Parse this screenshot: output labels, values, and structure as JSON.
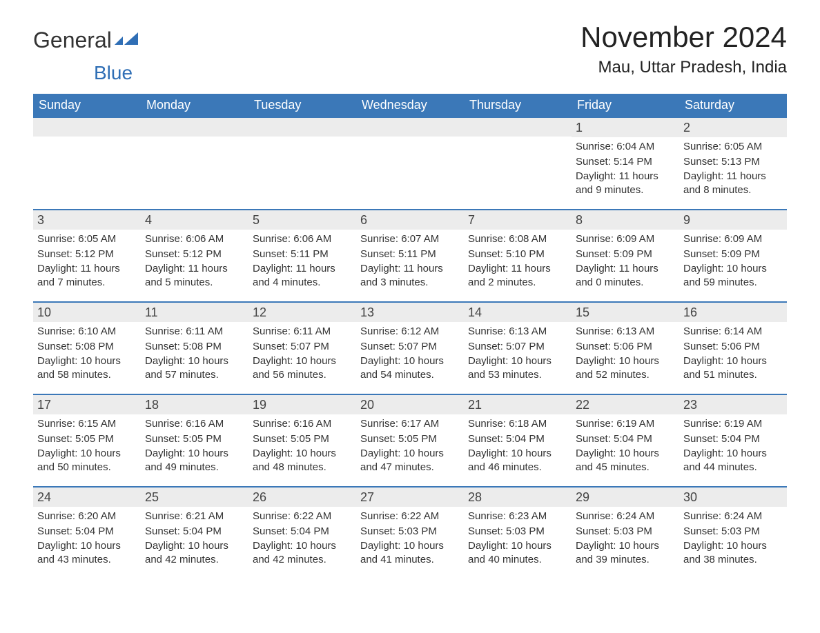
{
  "brand": {
    "part1": "General",
    "part2": "Blue"
  },
  "title": "November 2024",
  "location": "Mau, Uttar Pradesh, India",
  "colors": {
    "header_bg": "#3b78b8",
    "header_text": "#ffffff",
    "row_border": "#3b78b8",
    "daynum_bg": "#ececec",
    "body_text": "#333333",
    "logo_blue": "#2f6eb5",
    "page_bg": "#ffffff"
  },
  "typography": {
    "title_fontsize": 42,
    "location_fontsize": 24,
    "weekday_fontsize": 18,
    "daynum_fontsize": 18,
    "body_fontsize": 15
  },
  "weekdays": [
    "Sunday",
    "Monday",
    "Tuesday",
    "Wednesday",
    "Thursday",
    "Friday",
    "Saturday"
  ],
  "labels": {
    "sunrise": "Sunrise:",
    "sunset": "Sunset:",
    "daylight": "Daylight:"
  },
  "weeks": [
    [
      null,
      null,
      null,
      null,
      null,
      {
        "n": "1",
        "sr": "6:04 AM",
        "ss": "5:14 PM",
        "dl": "11 hours and 9 minutes."
      },
      {
        "n": "2",
        "sr": "6:05 AM",
        "ss": "5:13 PM",
        "dl": "11 hours and 8 minutes."
      }
    ],
    [
      {
        "n": "3",
        "sr": "6:05 AM",
        "ss": "5:12 PM",
        "dl": "11 hours and 7 minutes."
      },
      {
        "n": "4",
        "sr": "6:06 AM",
        "ss": "5:12 PM",
        "dl": "11 hours and 5 minutes."
      },
      {
        "n": "5",
        "sr": "6:06 AM",
        "ss": "5:11 PM",
        "dl": "11 hours and 4 minutes."
      },
      {
        "n": "6",
        "sr": "6:07 AM",
        "ss": "5:11 PM",
        "dl": "11 hours and 3 minutes."
      },
      {
        "n": "7",
        "sr": "6:08 AM",
        "ss": "5:10 PM",
        "dl": "11 hours and 2 minutes."
      },
      {
        "n": "8",
        "sr": "6:09 AM",
        "ss": "5:09 PM",
        "dl": "11 hours and 0 minutes."
      },
      {
        "n": "9",
        "sr": "6:09 AM",
        "ss": "5:09 PM",
        "dl": "10 hours and 59 minutes."
      }
    ],
    [
      {
        "n": "10",
        "sr": "6:10 AM",
        "ss": "5:08 PM",
        "dl": "10 hours and 58 minutes."
      },
      {
        "n": "11",
        "sr": "6:11 AM",
        "ss": "5:08 PM",
        "dl": "10 hours and 57 minutes."
      },
      {
        "n": "12",
        "sr": "6:11 AM",
        "ss": "5:07 PM",
        "dl": "10 hours and 56 minutes."
      },
      {
        "n": "13",
        "sr": "6:12 AM",
        "ss": "5:07 PM",
        "dl": "10 hours and 54 minutes."
      },
      {
        "n": "14",
        "sr": "6:13 AM",
        "ss": "5:07 PM",
        "dl": "10 hours and 53 minutes."
      },
      {
        "n": "15",
        "sr": "6:13 AM",
        "ss": "5:06 PM",
        "dl": "10 hours and 52 minutes."
      },
      {
        "n": "16",
        "sr": "6:14 AM",
        "ss": "5:06 PM",
        "dl": "10 hours and 51 minutes."
      }
    ],
    [
      {
        "n": "17",
        "sr": "6:15 AM",
        "ss": "5:05 PM",
        "dl": "10 hours and 50 minutes."
      },
      {
        "n": "18",
        "sr": "6:16 AM",
        "ss": "5:05 PM",
        "dl": "10 hours and 49 minutes."
      },
      {
        "n": "19",
        "sr": "6:16 AM",
        "ss": "5:05 PM",
        "dl": "10 hours and 48 minutes."
      },
      {
        "n": "20",
        "sr": "6:17 AM",
        "ss": "5:05 PM",
        "dl": "10 hours and 47 minutes."
      },
      {
        "n": "21",
        "sr": "6:18 AM",
        "ss": "5:04 PM",
        "dl": "10 hours and 46 minutes."
      },
      {
        "n": "22",
        "sr": "6:19 AM",
        "ss": "5:04 PM",
        "dl": "10 hours and 45 minutes."
      },
      {
        "n": "23",
        "sr": "6:19 AM",
        "ss": "5:04 PM",
        "dl": "10 hours and 44 minutes."
      }
    ],
    [
      {
        "n": "24",
        "sr": "6:20 AM",
        "ss": "5:04 PM",
        "dl": "10 hours and 43 minutes."
      },
      {
        "n": "25",
        "sr": "6:21 AM",
        "ss": "5:04 PM",
        "dl": "10 hours and 42 minutes."
      },
      {
        "n": "26",
        "sr": "6:22 AM",
        "ss": "5:04 PM",
        "dl": "10 hours and 42 minutes."
      },
      {
        "n": "27",
        "sr": "6:22 AM",
        "ss": "5:03 PM",
        "dl": "10 hours and 41 minutes."
      },
      {
        "n": "28",
        "sr": "6:23 AM",
        "ss": "5:03 PM",
        "dl": "10 hours and 40 minutes."
      },
      {
        "n": "29",
        "sr": "6:24 AM",
        "ss": "5:03 PM",
        "dl": "10 hours and 39 minutes."
      },
      {
        "n": "30",
        "sr": "6:24 AM",
        "ss": "5:03 PM",
        "dl": "10 hours and 38 minutes."
      }
    ]
  ]
}
